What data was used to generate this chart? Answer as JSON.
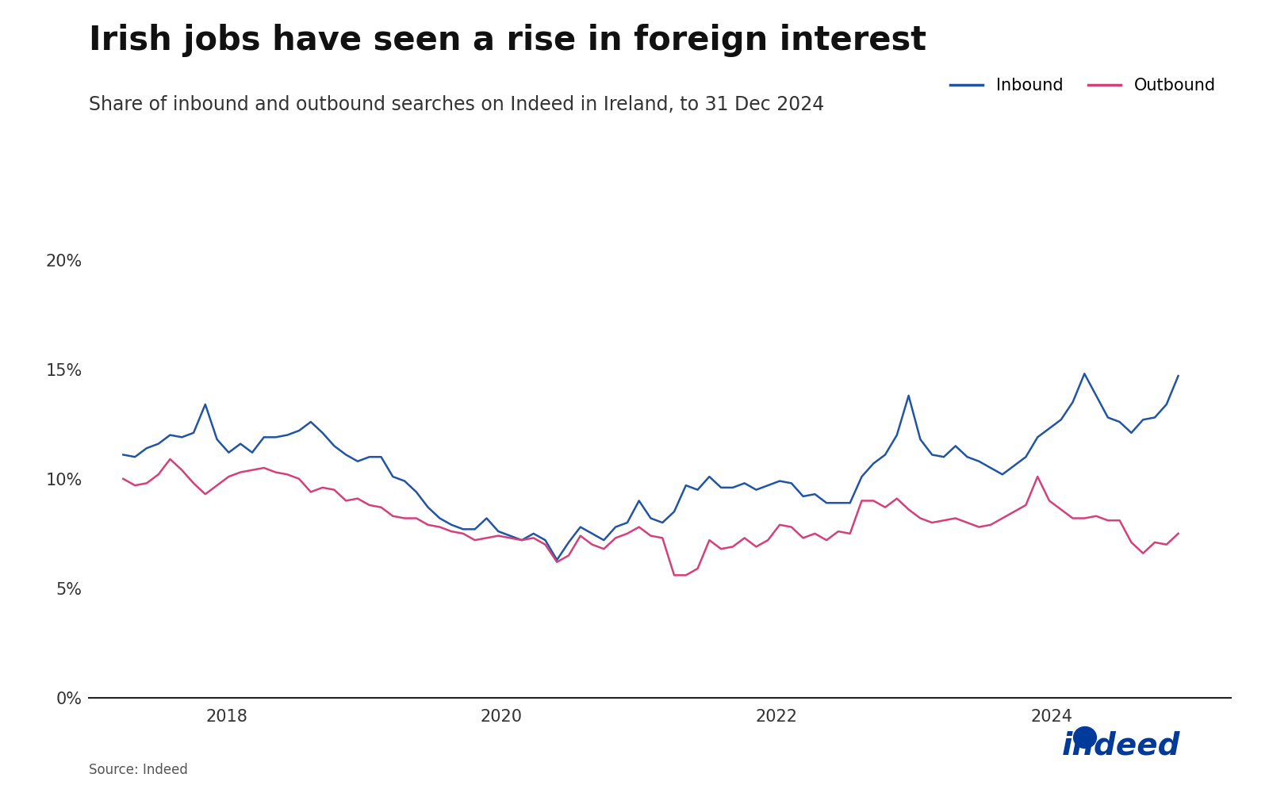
{
  "title": "Irish jobs have seen a rise in foreign interest",
  "subtitle": "Share of inbound and outbound searches on Indeed in Ireland, to 31 Dec 2024",
  "source": "Source: Indeed",
  "inbound_color": "#2155A3",
  "outbound_color": "#D4407A",
  "ylim": [
    0,
    0.21
  ],
  "yticks": [
    0,
    0.05,
    0.1,
    0.15,
    0.2
  ],
  "xticks": [
    2018,
    2020,
    2022,
    2024
  ],
  "legend_labels": [
    "Inbound",
    "Outbound"
  ],
  "inbound": [
    0.111,
    0.11,
    0.114,
    0.116,
    0.12,
    0.119,
    0.121,
    0.134,
    0.118,
    0.112,
    0.116,
    0.112,
    0.119,
    0.119,
    0.12,
    0.122,
    0.126,
    0.121,
    0.115,
    0.111,
    0.108,
    0.11,
    0.11,
    0.101,
    0.099,
    0.094,
    0.087,
    0.082,
    0.079,
    0.077,
    0.077,
    0.082,
    0.076,
    0.074,
    0.072,
    0.075,
    0.072,
    0.063,
    0.071,
    0.078,
    0.075,
    0.072,
    0.078,
    0.08,
    0.09,
    0.082,
    0.08,
    0.085,
    0.097,
    0.095,
    0.101,
    0.096,
    0.096,
    0.098,
    0.095,
    0.097,
    0.099,
    0.098,
    0.092,
    0.093,
    0.089,
    0.089,
    0.089,
    0.101,
    0.107,
    0.111,
    0.12,
    0.138,
    0.118,
    0.111,
    0.11,
    0.115,
    0.11,
    0.108,
    0.105,
    0.102,
    0.106,
    0.11,
    0.119,
    0.123,
    0.127,
    0.135,
    0.148,
    0.138,
    0.128,
    0.126,
    0.121,
    0.127,
    0.128,
    0.134,
    0.147
  ],
  "outbound": [
    0.1,
    0.097,
    0.098,
    0.102,
    0.109,
    0.104,
    0.098,
    0.093,
    0.097,
    0.101,
    0.103,
    0.104,
    0.105,
    0.103,
    0.102,
    0.1,
    0.094,
    0.096,
    0.095,
    0.09,
    0.091,
    0.088,
    0.087,
    0.083,
    0.082,
    0.082,
    0.079,
    0.078,
    0.076,
    0.075,
    0.072,
    0.073,
    0.074,
    0.073,
    0.072,
    0.073,
    0.07,
    0.062,
    0.065,
    0.074,
    0.07,
    0.068,
    0.073,
    0.075,
    0.078,
    0.074,
    0.073,
    0.056,
    0.056,
    0.059,
    0.072,
    0.068,
    0.069,
    0.073,
    0.069,
    0.072,
    0.079,
    0.078,
    0.073,
    0.075,
    0.072,
    0.076,
    0.075,
    0.09,
    0.09,
    0.087,
    0.091,
    0.086,
    0.082,
    0.08,
    0.081,
    0.082,
    0.08,
    0.078,
    0.079,
    0.082,
    0.085,
    0.088,
    0.101,
    0.09,
    0.086,
    0.082,
    0.082,
    0.083,
    0.081,
    0.081,
    0.071,
    0.066,
    0.071,
    0.07,
    0.075
  ]
}
